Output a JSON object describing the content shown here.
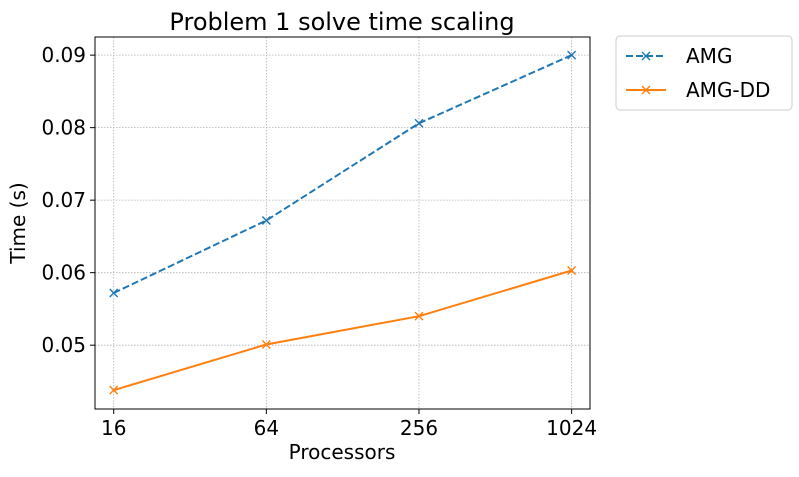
{
  "chart_data": {
    "type": "line",
    "title": "Problem 1 solve time scaling",
    "xlabel": "Processors",
    "ylabel": "Time (s)",
    "x_scale": "log2",
    "categories": [
      "16",
      "64",
      "256",
      "1024"
    ],
    "x": [
      16,
      64,
      256,
      1024
    ],
    "xlim": [
      13.5,
      1210
    ],
    "ylim": [
      0.0412,
      0.0925
    ],
    "yticks": [
      "0.05",
      "0.06",
      "0.07",
      "0.08",
      "0.09"
    ],
    "ytick_values": [
      0.05,
      0.06,
      0.07,
      0.08,
      0.09
    ],
    "grid": true,
    "legend_position": "outside top-right",
    "series": [
      {
        "name": "AMG",
        "values": [
          0.0572,
          0.0672,
          0.0806,
          0.09
        ],
        "color": "#1f77b4",
        "line_style": "dashed",
        "marker": "x"
      },
      {
        "name": "AMG-DD",
        "values": [
          0.0438,
          0.0501,
          0.054,
          0.0603
        ],
        "color": "#ff7f0e",
        "line_style": "solid",
        "marker": "x"
      }
    ]
  }
}
